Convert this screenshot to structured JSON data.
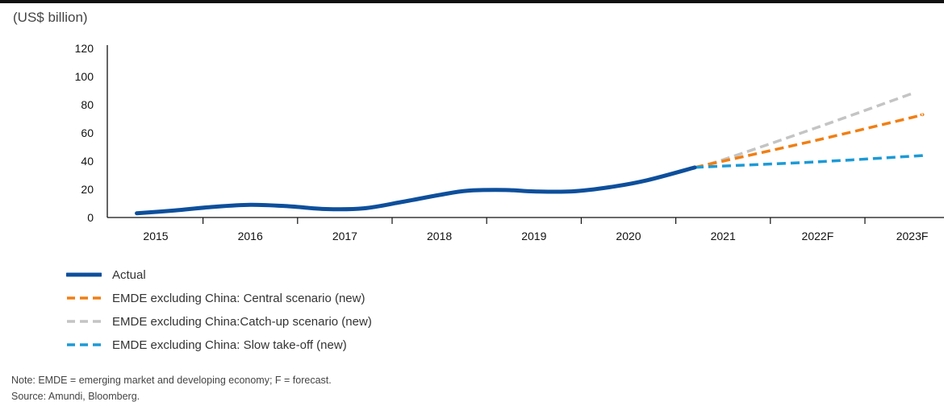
{
  "unit_label": "(US$ billion)",
  "note": "Note: EMDE = emerging market and developing economy; F = forecast.",
  "source": "Source: Amundi, Bloomberg.",
  "colors": {
    "actual": "#0d4f9c",
    "central": "#f07f14",
    "catchup": "#c4c4c4",
    "slow": "#1c9ad6",
    "axis": "#111111"
  },
  "chart_data": {
    "type": "line",
    "title": "",
    "xlabel": "",
    "ylabel": "(US$ billion)",
    "ylim": [
      0,
      120
    ],
    "yticks": [
      0,
      20,
      40,
      60,
      80,
      100,
      120
    ],
    "categories": [
      "2015",
      "2016",
      "2017",
      "2018",
      "2019",
      "2020",
      "2021",
      "2022F",
      "2023F"
    ],
    "grid": false,
    "legend_position": "bottom-left",
    "series": [
      {
        "name": "Actual",
        "style": "solid",
        "color": "#0d4f9c",
        "points": [
          {
            "x": 2014.8,
            "y": 3
          },
          {
            "x": 2015.2,
            "y": 5
          },
          {
            "x": 2015.6,
            "y": 7.5
          },
          {
            "x": 2016.0,
            "y": 9
          },
          {
            "x": 2016.4,
            "y": 8
          },
          {
            "x": 2016.8,
            "y": 6
          },
          {
            "x": 2017.2,
            "y": 6.5
          },
          {
            "x": 2017.6,
            "y": 11
          },
          {
            "x": 2018.0,
            "y": 16
          },
          {
            "x": 2018.3,
            "y": 19
          },
          {
            "x": 2018.7,
            "y": 19.5
          },
          {
            "x": 2019.0,
            "y": 18.5
          },
          {
            "x": 2019.4,
            "y": 18.5
          },
          {
            "x": 2019.8,
            "y": 21.5
          },
          {
            "x": 2020.2,
            "y": 26.5
          },
          {
            "x": 2020.7,
            "y": 35.5
          }
        ]
      },
      {
        "name": "EMDE excluding China: Central scenario (new)",
        "style": "dashed",
        "color": "#f07f14",
        "points": [
          {
            "x": 2020.7,
            "y": 35.5
          },
          {
            "x": 2021.0,
            "y": 40
          },
          {
            "x": 2022.0,
            "y": 55
          },
          {
            "x": 2023.0,
            "y": 71
          },
          {
            "x": 2023.1,
            "y": 73
          }
        ]
      },
      {
        "name": "EMDE excluding China:Catch-up scenario (new)",
        "style": "dashed",
        "color": "#c4c4c4",
        "points": [
          {
            "x": 2020.7,
            "y": 35.5
          },
          {
            "x": 2021.0,
            "y": 41
          },
          {
            "x": 2022.0,
            "y": 64
          },
          {
            "x": 2023.0,
            "y": 88
          }
        ]
      },
      {
        "name": "EMDE excluding China: Slow take-off (new)",
        "style": "dashed",
        "color": "#1c9ad6",
        "points": [
          {
            "x": 2020.7,
            "y": 35.5
          },
          {
            "x": 2021.0,
            "y": 36.5
          },
          {
            "x": 2022.0,
            "y": 39.5
          },
          {
            "x": 2023.0,
            "y": 43.5
          },
          {
            "x": 2023.1,
            "y": 44
          }
        ]
      }
    ]
  },
  "legend": [
    {
      "label": "Actual",
      "color": "#0d4f9c",
      "style": "solid"
    },
    {
      "label": "EMDE excluding China: Central scenario (new)",
      "color": "#f07f14",
      "style": "dashed"
    },
    {
      "label": "EMDE excluding China:Catch-up scenario (new)",
      "color": "#c4c4c4",
      "style": "dashed"
    },
    {
      "label": "EMDE excluding China: Slow take-off (new)",
      "color": "#1c9ad6",
      "style": "dashed"
    }
  ]
}
